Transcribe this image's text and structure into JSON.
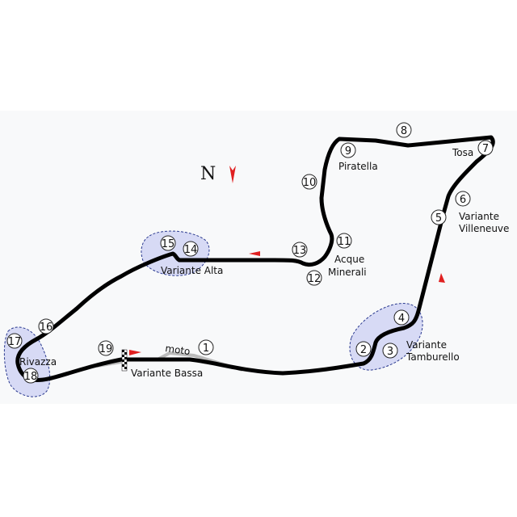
{
  "north": {
    "label": "N",
    "arrow_color": "#e02020"
  },
  "colors": {
    "track": "#000000",
    "moto_track": "#bbbbbb",
    "zone_fill": "#c9cdf2",
    "zone_stroke": "#2b3a8f",
    "direction_arrow": "#e02020",
    "background": "#f8f9fa"
  },
  "corners": [
    "1",
    "2",
    "3",
    "4",
    "5",
    "6",
    "7",
    "8",
    "9",
    "10",
    "11",
    "12",
    "13",
    "14",
    "15",
    "16",
    "17",
    "18",
    "19"
  ],
  "labels": {
    "moto": "moto",
    "variante_bassa": "Variante Bassa",
    "variante_tamburello_1": "Variante",
    "variante_tamburello_2": "Tamburello",
    "variante_villeneuve_1": "Variante",
    "variante_villeneuve_2": "Villeneuve",
    "tosa": "Tosa",
    "piratella": "Piratella",
    "acque_minerali_1": "Acque",
    "acque_minerali_2": "Minerali",
    "variante_alta": "Variante Alta",
    "rivazza": "Rivazza"
  }
}
